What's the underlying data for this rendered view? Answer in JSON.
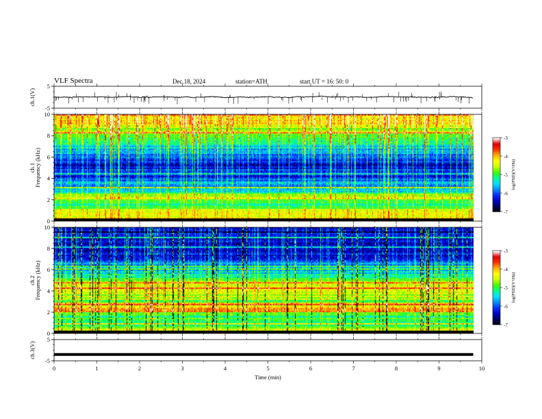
{
  "header": {
    "title": "VLF  Spectra",
    "date": "Dec.18, 2024",
    "station": "station=ATH",
    "start": "start  UT  =   16: 50: 0"
  },
  "chart_data": [
    {
      "type": "line",
      "panel": "ch1-waveform",
      "ylabel": "ch.1(V)",
      "ylim": [
        -5,
        5
      ],
      "yticks": [
        "5",
        "-5"
      ],
      "xlim": [
        0,
        10
      ],
      "baseline": 0,
      "series": [
        {
          "values_summary": "noisy waveform near 0 V with spikes to about -3 V"
        }
      ]
    },
    {
      "type": "heatmap",
      "panel": "ch1-spectrogram",
      "ylabel_line1": "ch.1",
      "ylabel_line2": "Frequency  (kHz)",
      "ylim": [
        0,
        10
      ],
      "yticks": [
        "0",
        "2",
        "4",
        "6",
        "8",
        "10"
      ],
      "xlim": [
        0,
        9.8
      ],
      "colorbar": {
        "label": "log(PSD)(V²/Hz)",
        "range": [
          -7,
          -3
        ],
        "ticks": [
          "-3",
          "-4",
          "-5",
          "-6",
          "-7"
        ]
      },
      "profile_log_psd": [
        [
          0,
          -4.2
        ],
        [
          1,
          -4.6
        ],
        [
          1.6,
          -5.3
        ],
        [
          2.2,
          -4.4
        ],
        [
          2.8,
          -5.4
        ],
        [
          4,
          -6.1
        ],
        [
          5.5,
          -6.3
        ],
        [
          6.5,
          -5.6
        ],
        [
          7.5,
          -5.2
        ],
        [
          8.5,
          -4.6
        ],
        [
          9.5,
          -4.1
        ],
        [
          10,
          -3.9
        ]
      ]
    },
    {
      "type": "heatmap",
      "panel": "ch2-spectrogram",
      "ylabel_line1": "ch.2",
      "ylabel_line2": "Frequency  (kHz)",
      "ylim": [
        0,
        10
      ],
      "yticks": [
        "0",
        "2",
        "4",
        "6",
        "8",
        "10"
      ],
      "xlim": [
        0,
        9.8
      ],
      "colorbar": {
        "label": "log(PSD)(V²/Hz)",
        "range": [
          -7,
          -3
        ],
        "ticks": [
          "-3",
          "-4",
          "-5",
          "-6",
          "-7"
        ]
      },
      "profile_log_psd": [
        [
          0,
          -4.6
        ],
        [
          1,
          -5.1
        ],
        [
          1.8,
          -4.9
        ],
        [
          2.1,
          -3.9
        ],
        [
          2.8,
          -4.9
        ],
        [
          3.6,
          -4.6
        ],
        [
          4.5,
          -4.2
        ],
        [
          5.5,
          -5.4
        ],
        [
          7,
          -6.2
        ],
        [
          8.5,
          -6.4
        ],
        [
          10,
          -6.5
        ]
      ]
    },
    {
      "type": "line",
      "panel": "ch3-waveform",
      "ylabel": "ch.3(V)",
      "ylim": [
        -5,
        5
      ],
      "yticks": [
        "5",
        "-5"
      ],
      "xlim": [
        0,
        10
      ],
      "series": [
        {
          "values_summary": "flat thick trace at about -2 V"
        }
      ],
      "baseline": -2
    }
  ],
  "xaxis": {
    "label": "Time  (min)",
    "ticks": [
      "0",
      "1",
      "2",
      "3",
      "4",
      "5",
      "6",
      "7",
      "8",
      "9",
      "10"
    ]
  },
  "colors": {
    "colormap": [
      "#000000",
      "#000060",
      "#0000c8",
      "#0030ff",
      "#0090ff",
      "#00e0ff",
      "#00ff90",
      "#40ff00",
      "#c8ff00",
      "#ffff00",
      "#ffb000",
      "#ff3000",
      "#e00000",
      "#ffffff"
    ]
  }
}
